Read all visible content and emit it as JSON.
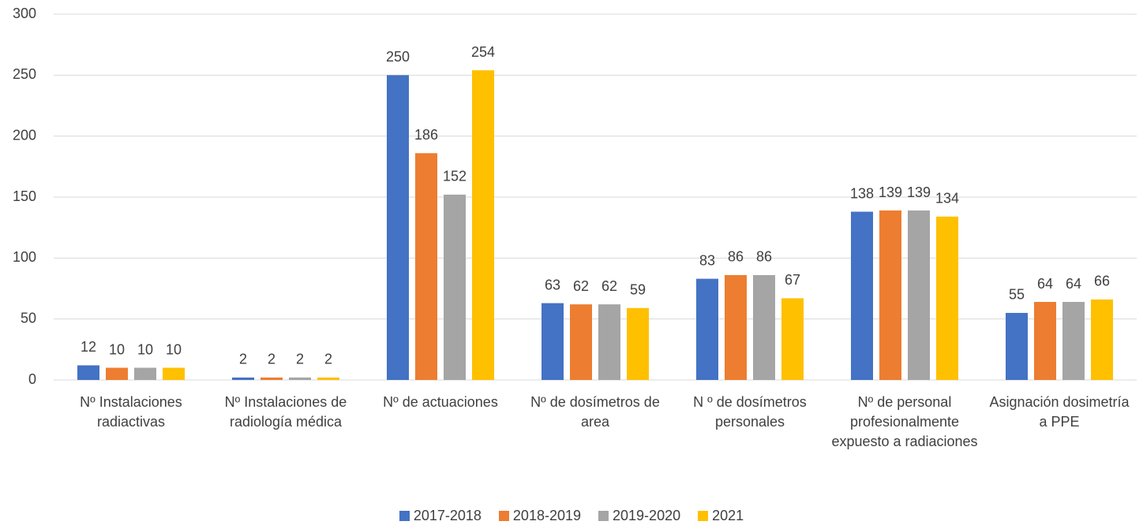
{
  "chart_data": {
    "type": "bar",
    "categories": [
      "Nº Instalaciones radiactivas",
      "Nº Instalaciones de radiología médica",
      "Nº de actuaciones",
      "Nº de dosímetros de area",
      "N º de dosímetros personales",
      "Nº de personal profesionalmente expuesto a radiaciones",
      "Asignación dosimetría a PPE"
    ],
    "series": [
      {
        "name": "2017-2018",
        "color": "#4472c4",
        "values": [
          12,
          2,
          250,
          63,
          83,
          138,
          55
        ]
      },
      {
        "name": "2018-2019",
        "color": "#ed7d31",
        "values": [
          10,
          2,
          186,
          62,
          86,
          139,
          64
        ]
      },
      {
        "name": "2019-2020",
        "color": "#a5a5a5",
        "values": [
          10,
          2,
          152,
          62,
          86,
          139,
          64
        ]
      },
      {
        "name": "2021",
        "color": "#ffc000",
        "values": [
          10,
          2,
          254,
          59,
          67,
          134,
          66
        ]
      }
    ],
    "ylim": [
      0,
      300
    ],
    "yticks": [
      0,
      50,
      100,
      150,
      200,
      250,
      300
    ],
    "grid": true,
    "legend": "bottom"
  }
}
